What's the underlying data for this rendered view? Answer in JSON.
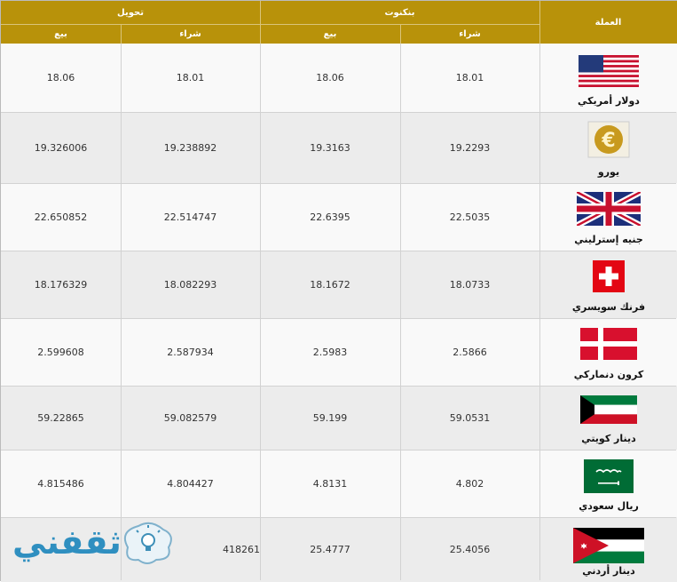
{
  "header": {
    "currency": "العملة",
    "bank": "بنكنوت",
    "transfer": "تحويل",
    "buy": "شراء",
    "sell": "بيع"
  },
  "rows": [
    {
      "name": "دولار أمريكي",
      "flag": "us-flag-icon",
      "bank_buy": "18.01",
      "bank_sell": "18.06",
      "tr_buy": "18.01",
      "tr_sell": "18.06"
    },
    {
      "name": "يورو",
      "flag": "euro-icon",
      "bank_buy": "19.2293",
      "bank_sell": "19.3163",
      "tr_buy": "19.238892",
      "tr_sell": "19.326006"
    },
    {
      "name": "جنيه إسترليني",
      "flag": "uk-flag-icon",
      "bank_buy": "22.5035",
      "bank_sell": "22.6395",
      "tr_buy": "22.514747",
      "tr_sell": "22.650852"
    },
    {
      "name": "فرنك سويسري",
      "flag": "swiss-flag-icon",
      "bank_buy": "18.0733",
      "bank_sell": "18.1672",
      "tr_buy": "18.082293",
      "tr_sell": "18.176329"
    },
    {
      "name": "كرون دنماركي",
      "flag": "denmark-flag-icon",
      "bank_buy": "2.5866",
      "bank_sell": "2.5983",
      "tr_buy": "2.587934",
      "tr_sell": "2.599608"
    },
    {
      "name": "دينار كويتي",
      "flag": "kuwait-flag-icon",
      "bank_buy": "59.0531",
      "bank_sell": "59.199",
      "tr_buy": "59.082579",
      "tr_sell": "59.22865"
    },
    {
      "name": "ريال سعودي",
      "flag": "saudi-flag-icon",
      "bank_buy": "4.802",
      "bank_sell": "4.8131",
      "tr_buy": "4.804427",
      "tr_sell": "4.815486"
    },
    {
      "name": "دينار أردني",
      "flag": "jordan-flag-icon",
      "bank_buy": "25.4056",
      "bank_sell": "25.4777",
      "tr_buy": "418261",
      "tr_sell": ""
    }
  ],
  "watermark": {
    "text": "ثقفني"
  },
  "colors": {
    "header_bg": "#b8920a",
    "row_odd": "#f9f9f9",
    "row_even": "#ececec"
  }
}
